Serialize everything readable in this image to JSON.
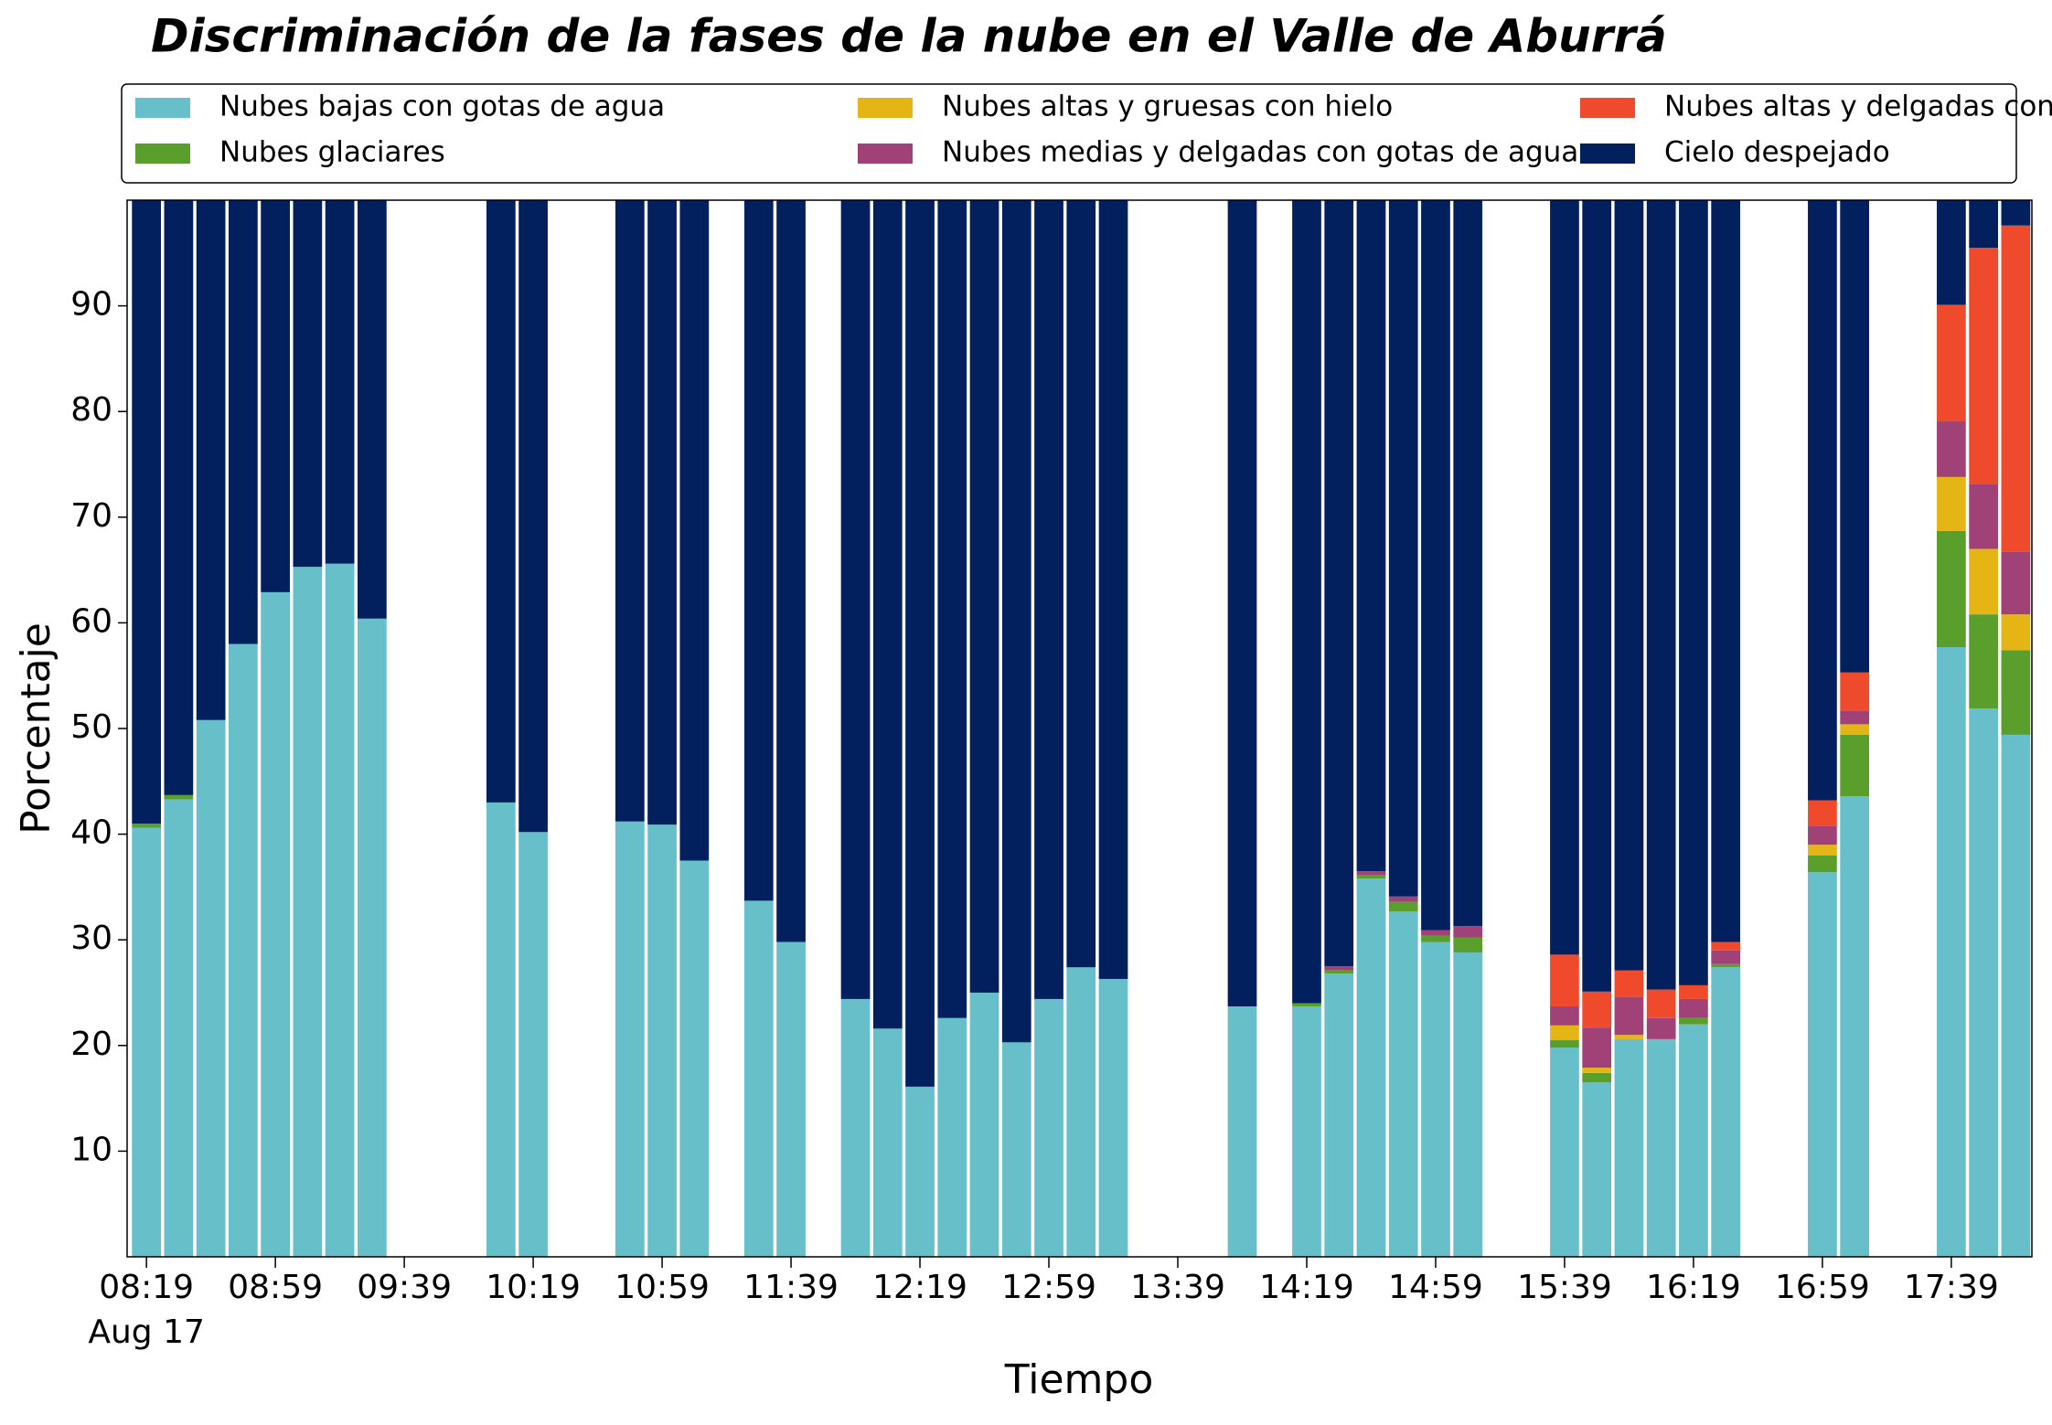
{
  "chart_data": {
    "type": "stacked_bar",
    "title": "Discriminación de la fases de la nube en el Valle de Aburrá",
    "xlabel": "Tiempo",
    "ylabel": "Porcentaje",
    "x_date": "Aug 17",
    "x": [
      "08:19",
      "08:29",
      "08:39",
      "08:49",
      "08:59",
      "09:09",
      "09:19",
      "09:29",
      "10:09",
      "10:19",
      "10:49",
      "10:59",
      "11:09",
      "11:29",
      "11:39",
      "11:59",
      "12:09",
      "12:19",
      "12:29",
      "12:39",
      "12:49",
      "12:59",
      "13:09",
      "13:19",
      "13:59",
      "14:19",
      "14:29",
      "14:39",
      "14:49",
      "14:59",
      "15:09",
      "15:39",
      "15:49",
      "15:59",
      "16:09",
      "16:19",
      "16:29",
      "16:59",
      "17:09",
      "17:39",
      "17:49",
      "17:59"
    ],
    "series": [
      {
        "name": "Nubes bajas con gotas de agua",
        "color": "#67bfca",
        "values": [
          40.6,
          43.3,
          50.8,
          58.0,
          62.9,
          65.3,
          65.6,
          60.4,
          43.0,
          40.2,
          41.2,
          40.9,
          37.5,
          33.7,
          29.8,
          24.4,
          21.6,
          16.1,
          22.6,
          25.0,
          20.3,
          24.4,
          27.4,
          26.3,
          23.7,
          23.7,
          26.8,
          35.8,
          32.7,
          29.8,
          28.8,
          19.8,
          16.5,
          20.6,
          20.6,
          22.0,
          27.4,
          36.4,
          43.6,
          57.7,
          51.9,
          49.4
        ]
      },
      {
        "name": "Nubes glaciares",
        "color": "#5a9e2b",
        "values": [
          0.4,
          0.4,
          0,
          0,
          0,
          0,
          0,
          0,
          0,
          0,
          0,
          0,
          0,
          0,
          0,
          0,
          0,
          0,
          0,
          0,
          0,
          0,
          0,
          0,
          0,
          0.3,
          0.3,
          0.3,
          0.9,
          0.6,
          1.4,
          0.7,
          0.9,
          0,
          0,
          0.6,
          0.3,
          1.6,
          5.8,
          11.0,
          8.9,
          8.0
        ]
      },
      {
        "name": "Nubes altas y gruesas con hielo",
        "color": "#e5b516",
        "values": [
          0,
          0,
          0,
          0,
          0,
          0,
          0,
          0,
          0,
          0,
          0,
          0,
          0,
          0,
          0,
          0,
          0,
          0,
          0,
          0,
          0,
          0,
          0,
          0,
          0,
          0,
          0,
          0,
          0,
          0,
          0,
          1.4,
          0.5,
          0.4,
          0,
          0,
          0,
          1.0,
          1.0,
          5.1,
          6.2,
          3.4
        ]
      },
      {
        "name": "Nubes medias y delgadas con gotas de agua",
        "color": "#a04278",
        "values": [
          0,
          0,
          0,
          0,
          0,
          0,
          0,
          0,
          0,
          0,
          0,
          0,
          0,
          0,
          0,
          0,
          0,
          0,
          0,
          0,
          0,
          0,
          0,
          0,
          0,
          0,
          0.4,
          0.4,
          0.5,
          0.5,
          1.1,
          1.8,
          3.8,
          3.6,
          2.0,
          1.8,
          1.3,
          1.8,
          1.3,
          5.3,
          6.1,
          5.9
        ]
      },
      {
        "name": "Nubes altas y delgadas con hielo",
        "color": "#ee4a2b",
        "values": [
          0,
          0,
          0,
          0,
          0,
          0,
          0,
          0,
          0,
          0,
          0,
          0,
          0,
          0,
          0,
          0,
          0,
          0,
          0,
          0,
          0,
          0,
          0,
          0,
          0,
          0,
          0,
          0,
          0,
          0,
          0,
          4.9,
          3.4,
          2.5,
          2.7,
          1.3,
          0.8,
          2.4,
          3.6,
          11.0,
          22.4,
          30.9
        ]
      },
      {
        "name": "Cielo despejado",
        "color": "#03205e",
        "values": [
          59.0,
          56.3,
          49.2,
          42.0,
          37.1,
          34.7,
          34.4,
          39.6,
          57.0,
          59.8,
          58.8,
          59.1,
          62.5,
          66.3,
          70.2,
          75.6,
          78.4,
          83.9,
          77.4,
          75.0,
          79.7,
          75.6,
          72.6,
          73.7,
          76.3,
          76.0,
          72.5,
          63.5,
          65.9,
          69.1,
          68.7,
          71.4,
          74.9,
          72.9,
          74.7,
          74.3,
          70.2,
          56.8,
          44.7,
          9.9,
          4.5,
          2.4
        ]
      }
    ],
    "xlim": [
      "08:13",
      "18:04"
    ],
    "xticks": [
      "08:19",
      "08:59",
      "09:39",
      "10:19",
      "10:59",
      "11:39",
      "12:19",
      "12:59",
      "13:39",
      "14:19",
      "14:59",
      "15:39",
      "16:19",
      "16:59",
      "17:39"
    ],
    "ylim": [
      0,
      100
    ],
    "yticks": [
      10,
      20,
      30,
      40,
      50,
      60,
      70,
      80,
      90
    ],
    "legend": "top",
    "legend_columns": 3
  }
}
